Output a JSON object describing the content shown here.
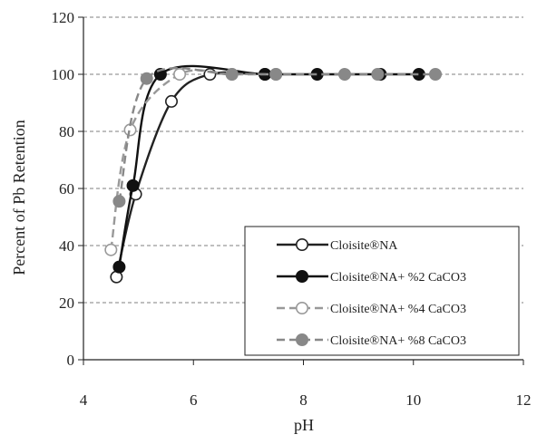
{
  "chart_data": {
    "type": "line",
    "xlabel": "pH",
    "ylabel": "Percent of Pb Retention",
    "xlim": [
      4,
      12
    ],
    "ylim": [
      0,
      120
    ],
    "x_ticks": [
      "4",
      "6",
      "8",
      "10",
      "12"
    ],
    "y_ticks": [
      "0",
      "20",
      "40",
      "60",
      "80",
      "100",
      "120"
    ],
    "grid": "horizontal dashed",
    "legend_position": "bottom-right",
    "series": [
      {
        "name": "Cloisite®NA",
        "color": "#222222",
        "line_style": "solid",
        "marker": "open-circle",
        "points": [
          [
            4.6,
            29
          ],
          [
            4.95,
            58
          ],
          [
            5.6,
            90.5
          ],
          [
            6.3,
            100
          ],
          [
            7.3,
            100
          ]
        ]
      },
      {
        "name": "Cloisite®NA+ %2 CaCO3",
        "color": "#111111",
        "line_style": "solid",
        "marker": "filled-circle",
        "points": [
          [
            4.65,
            32.5
          ],
          [
            4.9,
            61
          ],
          [
            5.4,
            100
          ],
          [
            7.3,
            100
          ],
          [
            8.25,
            100
          ],
          [
            9.4,
            100
          ],
          [
            10.1,
            100
          ]
        ]
      },
      {
        "name": "Cloisite®NA+ %4 CaCO3",
        "color": "#999999",
        "line_style": "dashed",
        "marker": "open-circle",
        "points": [
          [
            4.5,
            38.5
          ],
          [
            4.85,
            80.5
          ],
          [
            5.75,
            100
          ],
          [
            6.7,
            100
          ],
          [
            7.5,
            100
          ]
        ]
      },
      {
        "name": "Cloisite®NA+ %8 CaCO3",
        "color": "#888888",
        "line_style": "dashed",
        "marker": "filled-circle",
        "points": [
          [
            4.65,
            55.5
          ],
          [
            5.15,
            98.5
          ],
          [
            6.7,
            100
          ],
          [
            7.5,
            100
          ],
          [
            8.75,
            100
          ],
          [
            9.35,
            100
          ],
          [
            10.4,
            100
          ]
        ]
      }
    ]
  }
}
